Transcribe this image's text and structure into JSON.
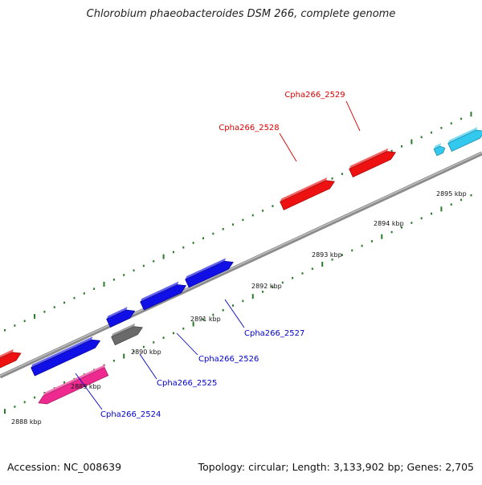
{
  "title": "Chlorobium phaeobacteroides DSM 266, complete genome",
  "footer": {
    "accession": "Accession: NC_008639",
    "summary": "Topology: circular; Length: 3,133,902 bp; Genes: 2,705"
  },
  "colors": {
    "backbone": "#8c8c8c",
    "tick": "#2a7a2a",
    "red": "#ee1111",
    "blue": "#1010e6",
    "magenta": "#ee2a90",
    "gray": "#6a6a6a",
    "cyan": "#33c8ee",
    "red_label": "#dd0000",
    "blue_label": "#0000cc"
  },
  "scale_labels": [
    "2888 kbp",
    "2889 kbp",
    "2890 kbp",
    "2891 kbp",
    "2892 kbp",
    "2893 kbp",
    "2894 kbp",
    "2895 kbp"
  ],
  "genes": [
    {
      "id": "Cpha266_2524",
      "label": "Cpha266_2524",
      "color": "magenta",
      "strand": "-",
      "labeled": true
    },
    {
      "id": "Cpha266_2525",
      "label": "Cpha266_2525",
      "color": "gray",
      "strand": "+",
      "labeled": true
    },
    {
      "id": "Cpha266_2526",
      "label": "Cpha266_2526",
      "color": "blue",
      "strand": "+",
      "labeled": true
    },
    {
      "id": "Cpha266_2527",
      "label": "Cpha266_2527",
      "color": "blue",
      "strand": "+",
      "labeled": true
    },
    {
      "id": "Cpha266_2528",
      "label": "Cpha266_2528",
      "color": "red",
      "strand": "+",
      "labeled": true
    },
    {
      "id": "Cpha266_2529",
      "label": "Cpha266_2529",
      "color": "red",
      "strand": "+",
      "labeled": true
    },
    {
      "id": "gene-blue-a",
      "label": "",
      "color": "blue",
      "strand": "+",
      "labeled": false
    },
    {
      "id": "gene-blue-b",
      "label": "",
      "color": "blue",
      "strand": "+",
      "labeled": false
    },
    {
      "id": "gene-red-left",
      "label": "",
      "color": "red",
      "strand": "+",
      "labeled": false
    },
    {
      "id": "gene-cyan-a",
      "label": "",
      "color": "cyan",
      "strand": "+",
      "labeled": false
    },
    {
      "id": "gene-cyan-b",
      "label": "",
      "color": "cyan",
      "strand": "+",
      "labeled": false
    }
  ]
}
